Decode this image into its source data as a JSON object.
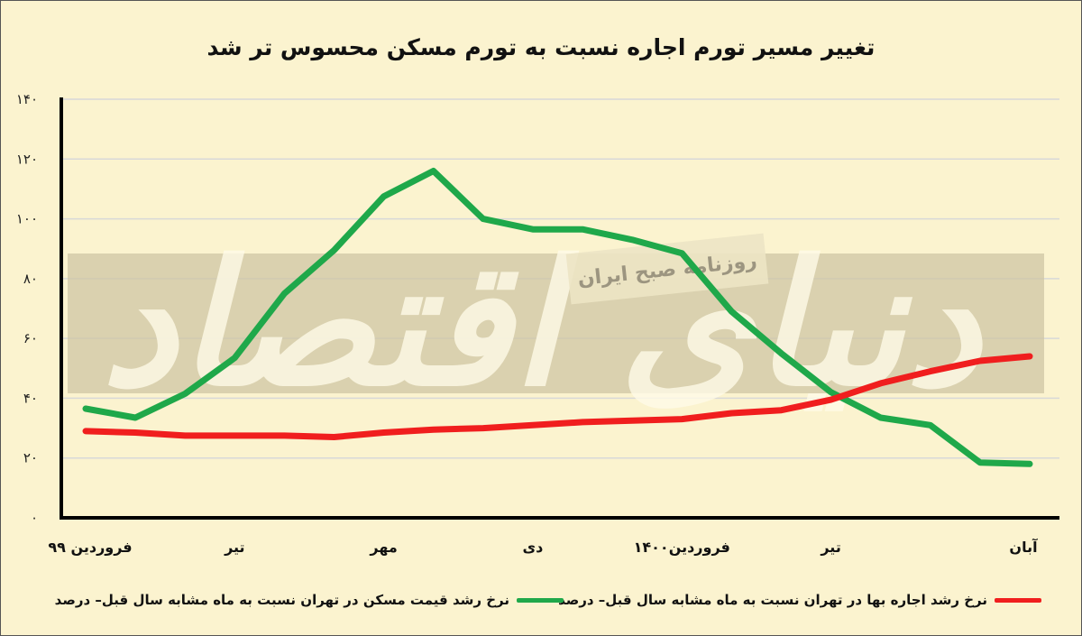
{
  "title": "تغییر مسیر تورم اجاره نسبت به تورم مسکن محسوس تر شد",
  "watermark": {
    "brand": "دنیای اقتصاد",
    "tagline": "روزنامه صبح ایران"
  },
  "colors": {
    "background": "#fbf3cf",
    "green": "#1fa84a",
    "red": "#f01e1e",
    "grid": "#d8d8d8"
  },
  "chart_data": {
    "type": "line",
    "title": "تغییر مسیر تورم اجاره نسبت به تورم مسکن محسوس تر شد",
    "ylim": [
      0,
      140
    ],
    "yticks": [
      "۰",
      "۲۰",
      "۴۰",
      "۶۰",
      "۸۰",
      "۱۰۰",
      "۱۲۰",
      "۱۴۰"
    ],
    "ytick_values": [
      0,
      20,
      40,
      60,
      80,
      100,
      120,
      140
    ],
    "x": [
      0,
      1,
      2,
      3,
      4,
      5,
      6,
      7,
      8,
      9,
      10,
      11,
      12,
      13,
      14,
      15,
      16,
      17,
      18,
      19
    ],
    "xtick_labels": [
      {
        "index": 0,
        "label": "فروردین ۹۹"
      },
      {
        "index": 3,
        "label": "تیر"
      },
      {
        "index": 6,
        "label": "مهر"
      },
      {
        "index": 9,
        "label": "دی"
      },
      {
        "index": 12,
        "label": "فروردین۱۴۰۰"
      },
      {
        "index": 15,
        "label": "تیر"
      },
      {
        "index": 19,
        "label": "آبان"
      }
    ],
    "grid": true,
    "legend_position": "bottom",
    "series": [
      {
        "name": "نرخ رشد قیمت مسکن در تهران نسبت به ماه مشابه سال قبل– درصد",
        "color": "#1fa84a",
        "values": [
          36.5,
          33.5,
          41.5,
          53.5,
          75,
          89.5,
          107.5,
          116,
          100,
          96.5,
          96.5,
          93,
          88.5,
          69,
          55,
          42,
          33.5,
          31,
          18.5,
          18
        ]
      },
      {
        "name": "نرخ رشد اجاره بها در تهران نسبت به ماه مشابه سال قبل– درصد",
        "color": "#f01e1e",
        "values": [
          29,
          28.5,
          27.5,
          27.5,
          27.5,
          27,
          28.5,
          29.5,
          30,
          31,
          32,
          32.5,
          33,
          35,
          36,
          39.5,
          45,
          49,
          52.5,
          54
        ]
      }
    ]
  }
}
